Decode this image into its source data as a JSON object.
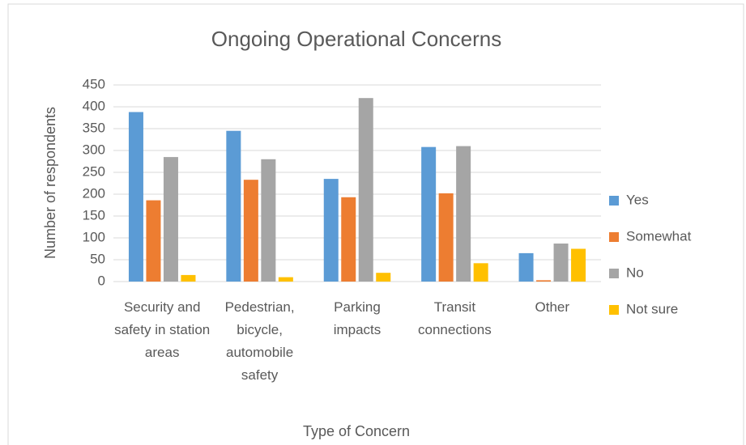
{
  "chart_data": {
    "type": "bar",
    "title": "Ongoing Operational Concerns",
    "x_label": "Type of Concern",
    "y_label": "Number of respondents",
    "categories": [
      "Security and safety in station areas",
      "Pedestrian, bicycle, automobile safety",
      "Parking impacts",
      "Transit connections",
      "Other"
    ],
    "series": [
      {
        "name": "Yes",
        "color": "#5b9bd5",
        "values": [
          388,
          345,
          235,
          308,
          65
        ]
      },
      {
        "name": "Somewhat",
        "color": "#ed7d31",
        "values": [
          186,
          233,
          193,
          202,
          3
        ]
      },
      {
        "name": "No",
        "color": "#a5a5a5",
        "values": [
          285,
          280,
          420,
          310,
          87
        ]
      },
      {
        "name": "Not sure",
        "color": "#ffc000",
        "values": [
          15,
          10,
          20,
          42,
          75
        ]
      }
    ],
    "ylim": [
      0,
      450
    ],
    "yticks": [
      0,
      50,
      100,
      150,
      200,
      250,
      300,
      350,
      400,
      450
    ],
    "grid": true,
    "legend": "right"
  }
}
